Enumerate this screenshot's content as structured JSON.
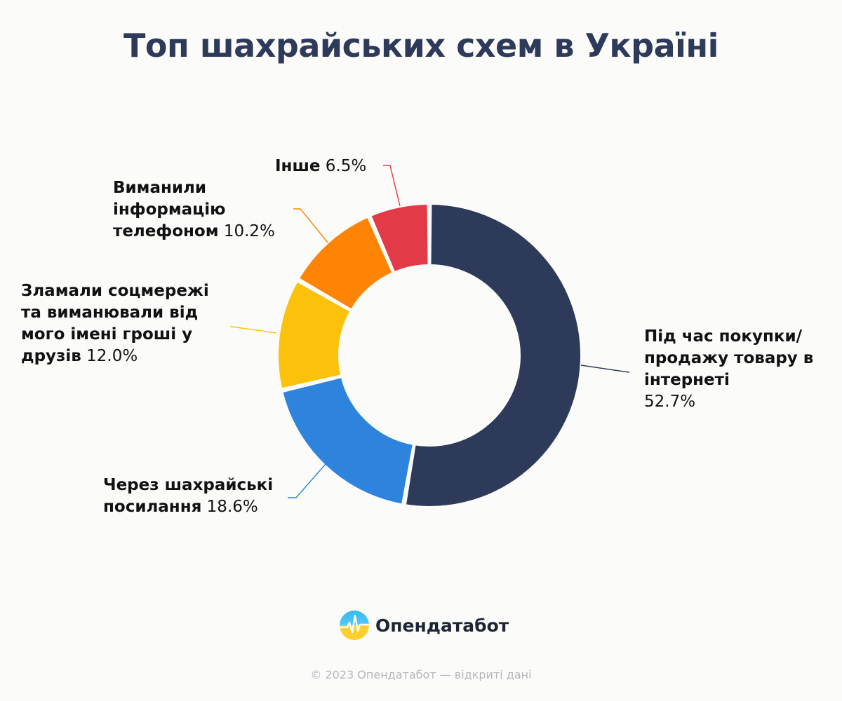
{
  "title": "Топ шахрайських схем в Україні",
  "chart_data": {
    "type": "pie",
    "variant": "donut",
    "title": "Топ шахрайських схем в Україні",
    "unit": "%",
    "slices": [
      {
        "label": "Під час покупки/продажу товару в інтернеті",
        "value": 52.7,
        "value_label": "52.7%",
        "color": "#2d3a59"
      },
      {
        "label": "Через шахрайські посилання",
        "value": 18.6,
        "value_label": "18.6%",
        "color": "#2e83dd"
      },
      {
        "label": "Зламали соцмережі та виманювали від мого імені гроші у друзів",
        "value": 12.0,
        "value_label": "12.0%",
        "color": "#fbc10b"
      },
      {
        "label": "Виманили інформацію телефоном",
        "value": 10.2,
        "value_label": "10.2%",
        "color": "#fd8404"
      },
      {
        "label": "Інше",
        "value": 6.5,
        "value_label": "6.5%",
        "color": "#e23a46"
      }
    ]
  },
  "brand": {
    "name": "Опендатабот",
    "logo_icon": "opendatabot-logo-icon"
  },
  "footer": "© 2023 Опендатабот — відкриті дані"
}
